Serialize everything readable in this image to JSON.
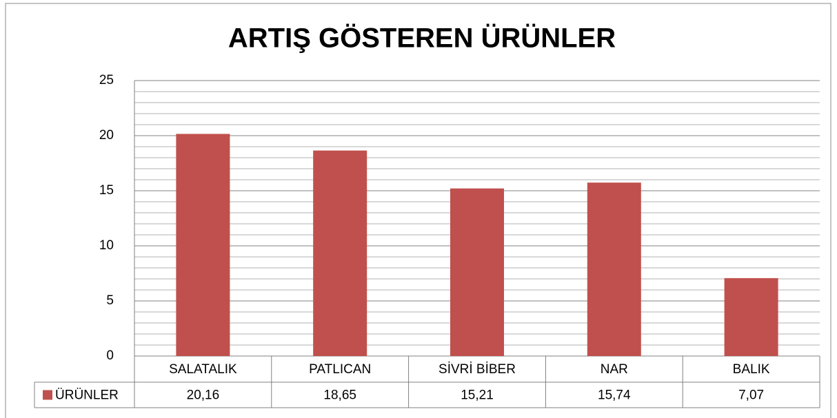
{
  "chart_data": {
    "type": "bar",
    "title": "ARTIŞ GÖSTEREN ÜRÜNLER",
    "categories": [
      "SALATALIK",
      "PATLICAN",
      "SİVRİ BİBER",
      "NAR",
      "BALIK"
    ],
    "series": [
      {
        "name": "ÜRÜNLER",
        "color": "#c0504d",
        "values": [
          20.16,
          18.65,
          15.21,
          15.74,
          7.07
        ],
        "value_labels": [
          "20,16",
          "18,65",
          "15,21",
          "15,74",
          "7,07"
        ]
      }
    ],
    "ylim": [
      0,
      25
    ],
    "yticks": [
      0,
      5,
      10,
      15,
      20,
      25
    ],
    "minor_yticks": [
      1,
      2,
      3,
      4,
      6,
      7,
      8,
      9,
      11,
      12,
      13,
      14,
      16,
      17,
      18,
      19,
      21,
      22,
      23,
      24
    ],
    "grid": true,
    "data_table": true
  }
}
